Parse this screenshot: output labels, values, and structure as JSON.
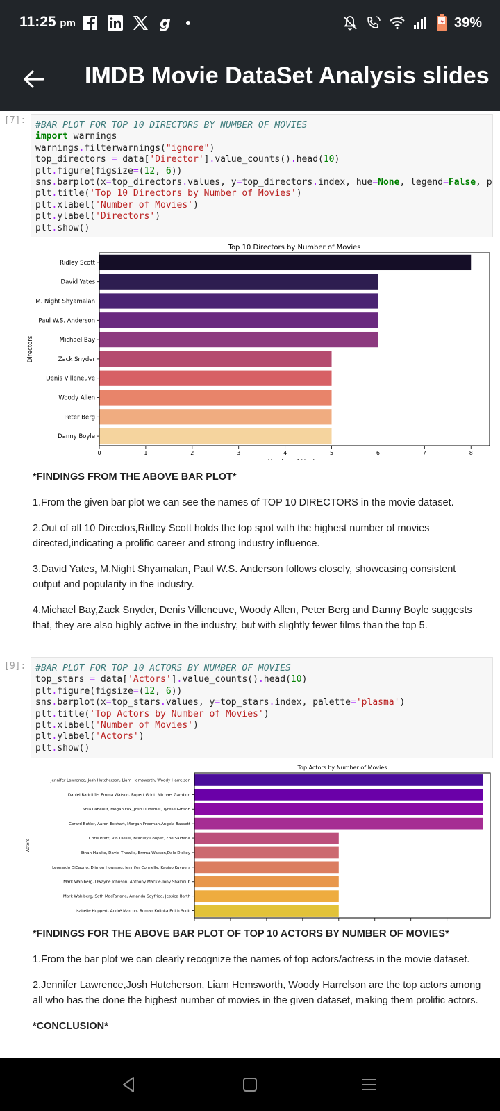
{
  "status_bar": {
    "time": "11:25",
    "ampm": "pm",
    "battery": "39%",
    "left_icons": [
      "facebook-icon",
      "linkedin-icon",
      "x-icon",
      "g-icon"
    ],
    "right_icons": [
      "bell-off-icon",
      "call-icon",
      "wifi-icon",
      "signal-icon",
      "battery-icon"
    ]
  },
  "app_bar": {
    "title": "IMDB Movie DataSet Analysis slides"
  },
  "cell1": {
    "prompt": "[7]:",
    "code": [
      [
        [
          "c-cm",
          "#BAR PLOT FOR TOP 10 DIRECTORS BY NUMBER OF MOVIES"
        ]
      ],
      [
        [
          "c-kw",
          "import"
        ],
        [
          "",
          " warnings"
        ]
      ],
      [
        [
          "",
          "warnings"
        ],
        [
          "c-op",
          "."
        ],
        [
          "",
          "filterwarnings("
        ],
        [
          "c-str",
          "\"ignore\""
        ],
        [
          "",
          ")"
        ]
      ],
      [
        [
          "",
          "top_directors "
        ],
        [
          "c-op",
          "="
        ],
        [
          "",
          " data["
        ],
        [
          "c-str",
          "'Director'"
        ],
        [
          "",
          "]"
        ],
        [
          "c-op",
          "."
        ],
        [
          "",
          "value_counts()"
        ],
        [
          "c-op",
          "."
        ],
        [
          "",
          "head("
        ],
        [
          "c-num",
          "10"
        ],
        [
          "",
          ")"
        ]
      ],
      [
        [
          "",
          "plt"
        ],
        [
          "c-op",
          "."
        ],
        [
          "",
          "figure(figsize"
        ],
        [
          "c-op",
          "="
        ],
        [
          "",
          "("
        ],
        [
          "c-num",
          "12"
        ],
        [
          "",
          ", "
        ],
        [
          "c-num",
          "6"
        ],
        [
          "",
          "))"
        ]
      ],
      [
        [
          "",
          "sns"
        ],
        [
          "c-op",
          "."
        ],
        [
          "",
          "barplot(x"
        ],
        [
          "c-op",
          "="
        ],
        [
          "",
          "top_directors"
        ],
        [
          "c-op",
          "."
        ],
        [
          "",
          "values, y"
        ],
        [
          "c-op",
          "="
        ],
        [
          "",
          "top_directors"
        ],
        [
          "c-op",
          "."
        ],
        [
          "",
          "index, hue"
        ],
        [
          "c-op",
          "="
        ],
        [
          "c-kw",
          "None"
        ],
        [
          "",
          ", legend"
        ],
        [
          "c-op",
          "="
        ],
        [
          "c-kw",
          "False"
        ],
        [
          "",
          ", p"
        ]
      ],
      [
        [
          "",
          "plt"
        ],
        [
          "c-op",
          "."
        ],
        [
          "",
          "title("
        ],
        [
          "c-str",
          "'Top 10 Directors by Number of Movies'"
        ],
        [
          "",
          ")"
        ]
      ],
      [
        [
          "",
          "plt"
        ],
        [
          "c-op",
          "."
        ],
        [
          "",
          "xlabel("
        ],
        [
          "c-str",
          "'Number of Movies'"
        ],
        [
          "",
          ")"
        ]
      ],
      [
        [
          "",
          "plt"
        ],
        [
          "c-op",
          "."
        ],
        [
          "",
          "ylabel("
        ],
        [
          "c-str",
          "'Directors'"
        ],
        [
          "",
          ")"
        ]
      ],
      [
        [
          "",
          "plt"
        ],
        [
          "c-op",
          "."
        ],
        [
          "",
          "show()"
        ]
      ]
    ]
  },
  "cell2": {
    "prompt": "[9]:",
    "code": [
      [
        [
          "c-cm",
          "#BAR PLOT FOR TOP 10 ACTORS BY NUMBER OF MOVIES"
        ]
      ],
      [
        [
          "",
          "top_stars "
        ],
        [
          "c-op",
          "="
        ],
        [
          "",
          " data["
        ],
        [
          "c-str",
          "'Actors'"
        ],
        [
          "",
          "]"
        ],
        [
          "c-op",
          "."
        ],
        [
          "",
          "value_counts()"
        ],
        [
          "c-op",
          "."
        ],
        [
          "",
          "head("
        ],
        [
          "c-num",
          "10"
        ],
        [
          "",
          ")"
        ]
      ],
      [
        [
          "",
          "plt"
        ],
        [
          "c-op",
          "."
        ],
        [
          "",
          "figure(figsize"
        ],
        [
          "c-op",
          "="
        ],
        [
          "",
          "("
        ],
        [
          "c-num",
          "12"
        ],
        [
          "",
          ", "
        ],
        [
          "c-num",
          "6"
        ],
        [
          "",
          "))"
        ]
      ],
      [
        [
          "",
          "sns"
        ],
        [
          "c-op",
          "."
        ],
        [
          "",
          "barplot(x"
        ],
        [
          "c-op",
          "="
        ],
        [
          "",
          "top_stars"
        ],
        [
          "c-op",
          "."
        ],
        [
          "",
          "values, y"
        ],
        [
          "c-op",
          "="
        ],
        [
          "",
          "top_stars"
        ],
        [
          "c-op",
          "."
        ],
        [
          "",
          "index, palette"
        ],
        [
          "c-op",
          "="
        ],
        [
          "c-str",
          "'plasma'"
        ],
        [
          "",
          ")"
        ]
      ],
      [
        [
          "",
          "plt"
        ],
        [
          "c-op",
          "."
        ],
        [
          "",
          "title("
        ],
        [
          "c-str",
          "'Top Actors by Number of Movies'"
        ],
        [
          "",
          ")"
        ]
      ],
      [
        [
          "",
          "plt"
        ],
        [
          "c-op",
          "."
        ],
        [
          "",
          "xlabel("
        ],
        [
          "c-str",
          "'Number of Movies'"
        ],
        [
          "",
          ")"
        ]
      ],
      [
        [
          "",
          "plt"
        ],
        [
          "c-op",
          "."
        ],
        [
          "",
          "ylabel("
        ],
        [
          "c-str",
          "'Actors'"
        ],
        [
          "",
          ")"
        ]
      ],
      [
        [
          "",
          "plt"
        ],
        [
          "c-op",
          "."
        ],
        [
          "",
          "show()"
        ]
      ]
    ]
  },
  "findings1": {
    "heading": "*FINDINGS FROM THE ABOVE BAR PLOT*",
    "points": [
      "1.From the given bar plot we can see the names of TOP 10 DIRECTORS in the movie dataset.",
      "2.Out of all 10 Directos,Ridley Scott holds the top spot with the highest number of movies directed,indicating a prolific career and strong industry influence.",
      "3.David Yates, M.Night Shyamalan, Paul W.S. Anderson follows closely, showcasing consistent output and popularity in the industry.",
      "4.Michael Bay,Zack Snyder, Denis Villeneuve, Woody Allen, Peter Berg and Danny Boyle suggests that, they are also highly active in the industry, but with slightly fewer films than the top 5."
    ]
  },
  "findings2": {
    "heading": "*FINDINGS FOR THE ABOVE BAR PLOT OF TOP 10 ACTORS BY NUMBER OF MOVIES*",
    "points": [
      "1.From the bar plot we can clearly recognize the names of top actors/actress in the movie dataset.",
      "2.Jennifer Lawrence,Josh Hutcherson, Liam Hemsworth, Woody Harrelson are the top actors among all who has the done the highest number of movies in the given dataset, making them prolific actors."
    ],
    "conclusion": "*CONCLUSION*"
  },
  "chart_data": [
    {
      "type": "bar",
      "orientation": "horizontal",
      "title": "Top 10 Directors by Number of Movies",
      "xlabel": "Number of Movies",
      "ylabel": "Directors",
      "categories": [
        "Ridley Scott",
        "David Yates",
        "M. Night Shyamalan",
        "Paul W.S. Anderson",
        "Michael Bay",
        "Zack Snyder",
        "Denis Villeneuve",
        "Woody Allen",
        "Peter Berg",
        "Danny Boyle"
      ],
      "values": [
        8,
        6,
        6,
        6,
        6,
        5,
        5,
        5,
        5,
        5
      ],
      "colors": [
        "#150e27",
        "#2e1e50",
        "#4a2473",
        "#6a2a7f",
        "#8d3a7f",
        "#b54b6f",
        "#d76065",
        "#e8846a",
        "#f0ac80",
        "#f5d49e"
      ],
      "xlim": [
        0,
        8.4
      ],
      "xticks": [
        "0",
        "1",
        "2",
        "3",
        "4",
        "5",
        "6",
        "7",
        "8"
      ],
      "grid": false
    },
    {
      "type": "bar",
      "orientation": "horizontal",
      "title": "Top Actors by Number of Movies",
      "xlabel": "Number of Movies",
      "ylabel": "Actors",
      "categories": [
        "Jennifer Lawrence, Josh Hutcherson, Liam Hemsworth, Woody Harrelson",
        "Daniel Radcliffe, Emma Watson, Rupert Grint, Michael Gambon",
        "Shia LaBeouf, Megan Fox, Josh Duhamel, Tyrese Gibson",
        "Gerard Butler, Aaron Eckhart, Morgan Freeman,Angela Bassett",
        "Chris Pratt, Vin Diesel, Bradley Cooper, Zoe Saldana",
        "Ethan Hawke, David Thewlis, Emma Watson,Dale Dickey",
        "Leonardo DiCaprio, Djimon Hounsou, Jennifer Connelly, Kagiso Kuypers",
        "Mark Wahlberg, Dwayne Johnson, Anthony Mackie,Tony Shalhoub",
        "Mark Wahlberg, Seth MacFarlane, Amanda Seyfried, Jessica Barth",
        "Isabelle Huppert, André Marcon, Roman Kolinka,Edith Scob"
      ],
      "values": [
        2,
        2,
        2,
        2,
        1,
        1,
        1,
        1,
        1,
        1
      ],
      "colors": [
        "#4b0c9b",
        "#6a00a8",
        "#8b0aa5",
        "#a62d93",
        "#bc4f7b",
        "#cc6a70",
        "#db7d60",
        "#e8974c",
        "#eeac3f",
        "#e2c238"
      ],
      "xlim": [
        0,
        2.05
      ],
      "xticks": [
        "0.00",
        "0.25",
        "0.50",
        "0.75",
        "1.00",
        "1.25",
        "1.50",
        "1.75",
        "2.00"
      ],
      "grid": false
    }
  ]
}
